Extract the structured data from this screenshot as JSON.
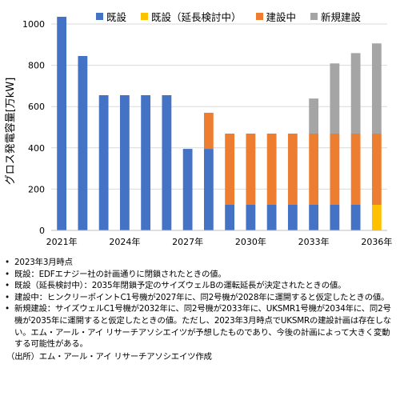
{
  "chart_data": {
    "type": "bar",
    "stacked": true,
    "ylabel": "グロス発電容量[万kW]",
    "ylim": [
      0,
      1000
    ],
    "yticks": [
      "0",
      "200",
      "400",
      "600",
      "800",
      "1000"
    ],
    "x_tick_labels": [
      "2021年",
      "2024年",
      "2027年",
      "2030年",
      "2033年",
      "2036年"
    ],
    "categories": [
      "2021",
      "2022",
      "2023",
      "2024",
      "2025",
      "2026",
      "2027",
      "2028",
      "2029",
      "2030",
      "2031",
      "2032",
      "2033",
      "2034",
      "2035",
      "2036"
    ],
    "series": [
      {
        "name": "既設",
        "color": "#4472C4",
        "values": [
          1035,
          845,
          655,
          655,
          655,
          655,
          395,
          395,
          124,
          124,
          124,
          124,
          124,
          124,
          124,
          0
        ]
      },
      {
        "name": "既設（延長検討中）",
        "color": "#FFC000",
        "values": [
          0,
          0,
          0,
          0,
          0,
          0,
          0,
          0,
          0,
          0,
          0,
          0,
          0,
          0,
          0,
          124
        ]
      },
      {
        "name": "建設中",
        "color": "#ED7D31",
        "values": [
          0,
          0,
          0,
          0,
          0,
          0,
          0,
          175,
          345,
          345,
          345,
          345,
          345,
          345,
          345,
          345
        ]
      },
      {
        "name": "新規建設",
        "color": "#A5A5A5",
        "values": [
          0,
          0,
          0,
          0,
          0,
          0,
          0,
          0,
          0,
          0,
          0,
          0,
          170,
          340,
          390,
          437
        ]
      }
    ],
    "grid": true,
    "legend_position": "top"
  },
  "notes": [
    "2023年3月時点",
    "既設：EDFエナジー社の計画通りに閉鎖されたときの値。",
    "既設（延長検討中）：2035年閉鎖予定のサイズウェルBの運転延長が決定されたときの値。",
    "建設中：ヒンクリーポイントC1号機が2027年に、同2号機が2028年に運開すると仮定したときの値。",
    "新規建設：サイズウェルC1号機が2032年に、同2号機が2033年に、UKSMR1号機が2034年に、同2号機が2035年に運開すると仮定したときの値。ただし、2023年3月時点でUKSMRの建設計画は存在しない。エム・アール・アイ リサーチアソシエイツが予想したものであり、今後の計画によって大きく変動する可能性がある。"
  ],
  "bullet": "•",
  "source": "（出所）エム・アール・アイ リサーチアソシエイツ作成"
}
